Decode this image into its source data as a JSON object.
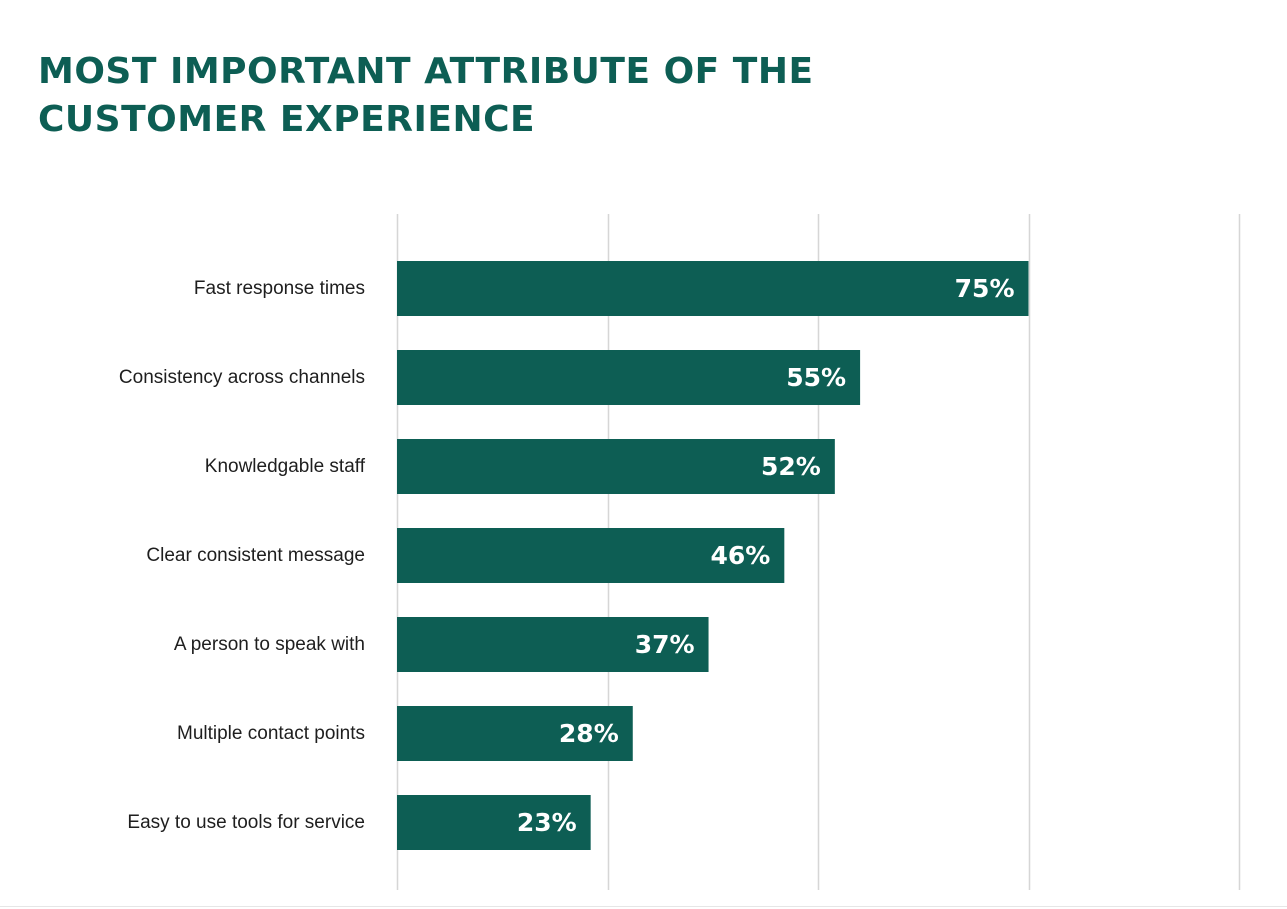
{
  "title_lines": [
    "MOST IMPORTANT ATTRIBUTE OF THE",
    "CUSTOMER EXPERIENCE"
  ],
  "colors": {
    "title": "#0d5e54",
    "bar": "#0d5e54",
    "bar_label": "#ffffff",
    "category_label": "#1e1e1e",
    "grid": "#d6d6d6"
  },
  "chart_data": {
    "type": "bar",
    "orientation": "horizontal",
    "title": "MOST IMPORTANT ATTRIBUTE OF THE CUSTOMER EXPERIENCE",
    "categories": [
      "Fast response times",
      "Consistency across channels",
      "Knowledgable staff",
      "Clear consistent message",
      "A person to speak with",
      "Multiple contact points",
      "Easy to use tools for service"
    ],
    "values": [
      75,
      55,
      52,
      46,
      37,
      28,
      23
    ],
    "value_labels": [
      "75%",
      "55%",
      "52%",
      "46%",
      "37%",
      "28%",
      "23%"
    ],
    "xlim": [
      0,
      100
    ],
    "gridlines": [
      0,
      25,
      50,
      75,
      100
    ],
    "tick_labels_shown": false,
    "grid": true,
    "xlabel": "",
    "ylabel": ""
  }
}
